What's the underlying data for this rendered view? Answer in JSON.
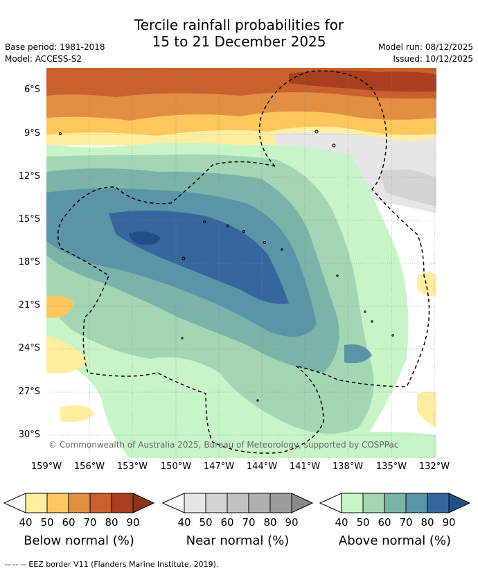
{
  "title_line1": "Tercile rainfall probabilities for",
  "title_line2": "15 to 21 December 2025",
  "base_period": "Base period: 1981-2018",
  "model": "Model: ACCESS-S2",
  "model_run": "Model run: 08/12/2025",
  "issued": "Issued: 10/12/2025",
  "copyright": "© Commonwealth of Australia 2025, Bureau of Meteorology, supported by COSPPac",
  "lat_ticks": [
    "6°S",
    "9°S",
    "12°S",
    "15°S",
    "18°S",
    "21°S",
    "24°S",
    "27°S",
    "30°S"
  ],
  "lon_ticks": [
    "159°W",
    "156°W",
    "153°W",
    "150°W",
    "147°W",
    "144°W",
    "141°W",
    "138°W",
    "135°W",
    "132°W"
  ],
  "legends": [
    {
      "label": "Below normal (%)",
      "ticks": [
        "40",
        "50",
        "60",
        "70",
        "80",
        "90"
      ],
      "colors": [
        "#ffeea0",
        "#fdc75e",
        "#e08f43",
        "#c9602e",
        "#a8401f",
        "#8c3418"
      ]
    },
    {
      "label": "Near normal (%)",
      "ticks": [
        "40",
        "50",
        "60",
        "70",
        "80",
        "90"
      ],
      "colors": [
        "#e6e6e6",
        "#d4d4d4",
        "#c2c2c2",
        "#b0b0b0",
        "#9c9c9c",
        "#8a8a8a"
      ]
    },
    {
      "label": "Above normal (%)",
      "ticks": [
        "40",
        "50",
        "60",
        "70",
        "80",
        "90"
      ],
      "colors": [
        "#c8f5c8",
        "#a3d6b3",
        "#7ab3a8",
        "#5a94a6",
        "#35679c",
        "#1f4f86"
      ]
    }
  ],
  "footnote": "-- -- -- EEZ border V11 (Flanders Marine Institute, 2019).",
  "colors": {
    "below": [
      "#ffeea0",
      "#fdc75e",
      "#e08f43",
      "#c9602e",
      "#a8401f"
    ],
    "near": [
      "#e6e6e6",
      "#d4d4d4"
    ],
    "above": [
      "#c8f5c8",
      "#a3d6b3",
      "#7ab3a8",
      "#5a94a6",
      "#35679c"
    ]
  }
}
